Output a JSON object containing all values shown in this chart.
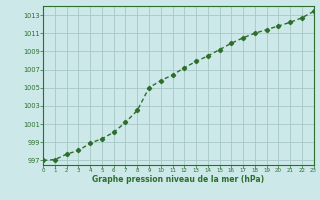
{
  "x": [
    0,
    1,
    2,
    3,
    4,
    5,
    6,
    7,
    8,
    9,
    10,
    11,
    12,
    13,
    14,
    15,
    16,
    17,
    18,
    19,
    20,
    21,
    22,
    23
  ],
  "y": [
    997.0,
    997.1,
    997.7,
    998.1,
    998.9,
    999.4,
    1000.1,
    1001.2,
    1002.5,
    1005.0,
    1005.8,
    1006.4,
    1007.2,
    1007.9,
    1008.5,
    1009.2,
    1009.9,
    1010.5,
    1011.0,
    1011.4,
    1011.8,
    1012.2,
    1012.7,
    1013.4
  ],
  "xlim": [
    0,
    23
  ],
  "ylim": [
    996.5,
    1014.0
  ],
  "yticks": [
    997,
    999,
    1001,
    1003,
    1005,
    1007,
    1009,
    1011,
    1013
  ],
  "xticks": [
    0,
    1,
    2,
    3,
    4,
    5,
    6,
    7,
    8,
    9,
    10,
    11,
    12,
    13,
    14,
    15,
    16,
    17,
    18,
    19,
    20,
    21,
    22,
    23
  ],
  "xlabel": "Graphe pression niveau de la mer (hPa)",
  "line_color": "#2d6e2d",
  "marker": "D",
  "marker_size": 2.2,
  "bg_color": "#cce8e8",
  "grid_color": "#a8c8c8",
  "tick_color": "#2d6e2d",
  "label_color": "#2d6e2d",
  "linewidth": 1.0
}
